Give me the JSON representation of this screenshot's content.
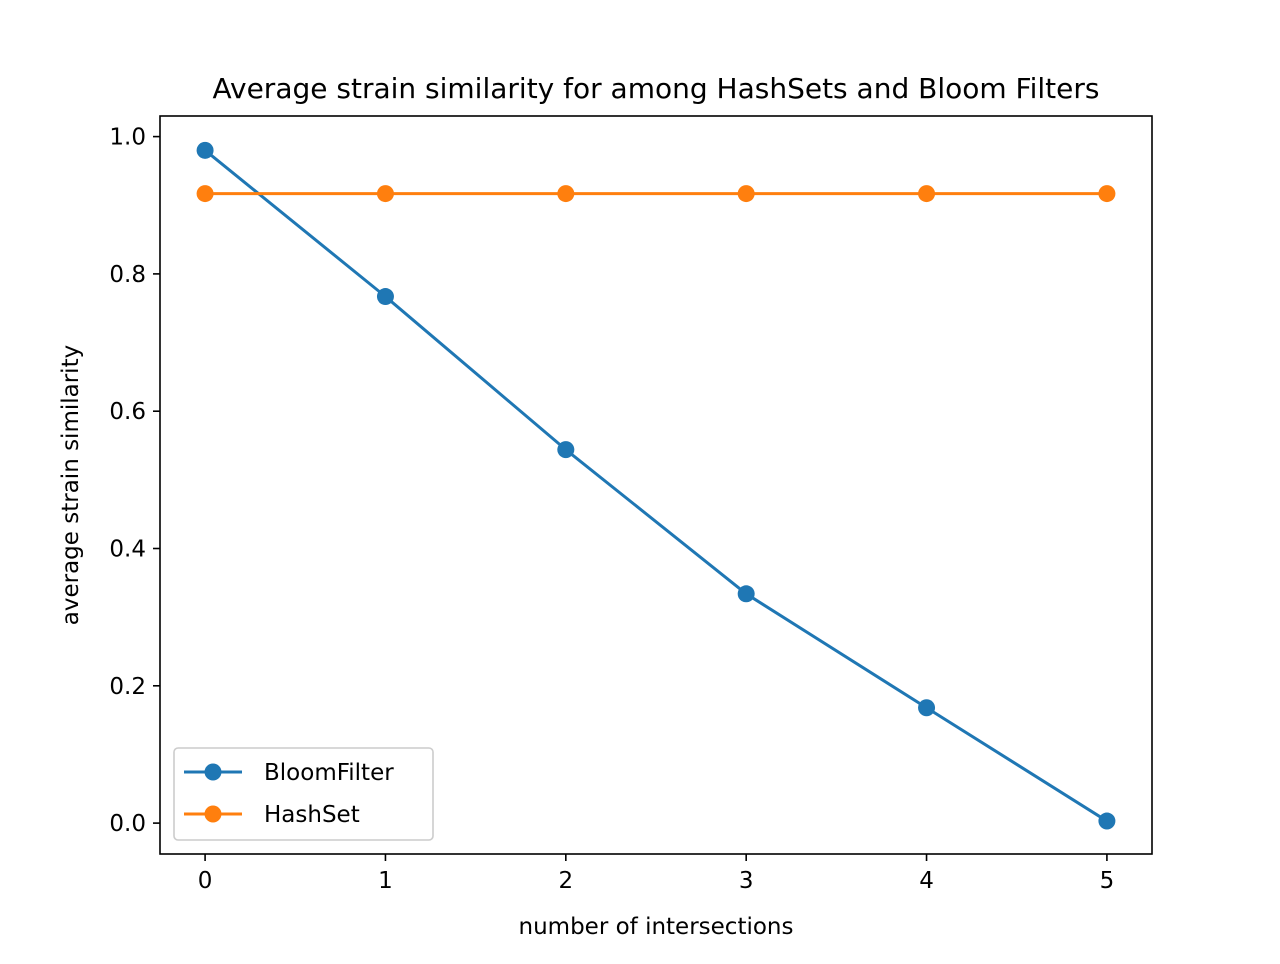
{
  "chart_data": {
    "type": "line",
    "title": "Average strain similarity for among HashSets and Bloom Filters",
    "xlabel": "number of intersections",
    "ylabel": "average strain similarity",
    "x": [
      0,
      1,
      2,
      3,
      4,
      5
    ],
    "xticks": [
      "0",
      "1",
      "2",
      "3",
      "4",
      "5"
    ],
    "yticks": [
      "0.0",
      "0.2",
      "0.4",
      "0.6",
      "0.8",
      "1.0"
    ],
    "xlim": [
      -0.25,
      5.25
    ],
    "ylim": [
      -0.045,
      1.03
    ],
    "grid": false,
    "legend_position": "lower-left",
    "series": [
      {
        "name": "BloomFilter",
        "color": "#1f77b4",
        "marker": "circle",
        "values": [
          0.98,
          0.767,
          0.544,
          0.334,
          0.168,
          0.003
        ]
      },
      {
        "name": "HashSet",
        "color": "#ff7f0e",
        "marker": "circle",
        "values": [
          0.917,
          0.917,
          0.917,
          0.917,
          0.917,
          0.917
        ]
      }
    ]
  }
}
